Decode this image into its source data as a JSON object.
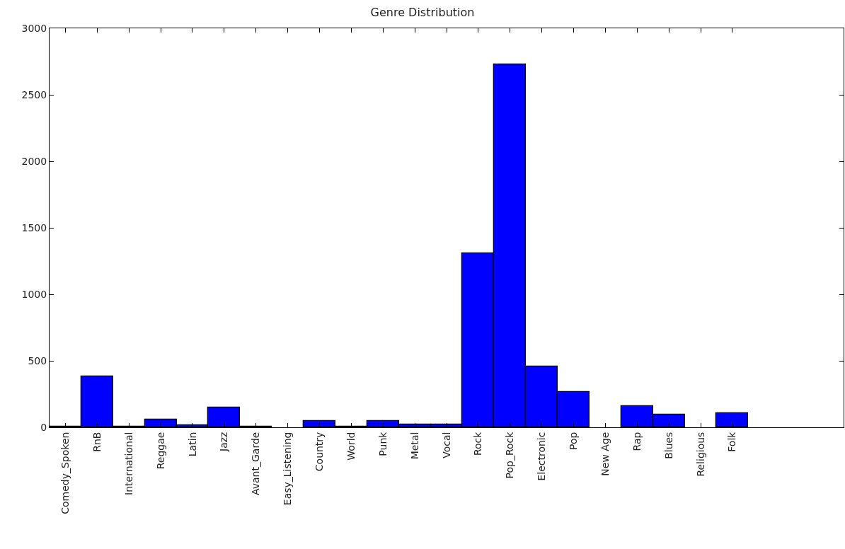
{
  "chart_data": {
    "type": "bar",
    "title": "Genre Distribution",
    "categories": [
      "Comedy_Spoken",
      "RnB",
      "International",
      "Reggae",
      "Latin",
      "Jazz",
      "Avant_Garde",
      "Easy_Listening",
      "Country",
      "World",
      "Punk",
      "Metal",
      "Vocal",
      "Rock",
      "Pop_Rock",
      "Electronic",
      "Pop",
      "New Age",
      "Rap",
      "Blues",
      "Religious",
      "Folk"
    ],
    "values": [
      5,
      385,
      5,
      60,
      15,
      147,
      5,
      0,
      50,
      5,
      50,
      20,
      20,
      1310,
      2730,
      460,
      265,
      0,
      160,
      95,
      0,
      105
    ],
    "color": "#0000ff",
    "ylim": [
      0,
      3000
    ],
    "yticks": [
      0,
      500,
      1000,
      1500,
      2000,
      2500,
      3000
    ],
    "legend": false
  }
}
